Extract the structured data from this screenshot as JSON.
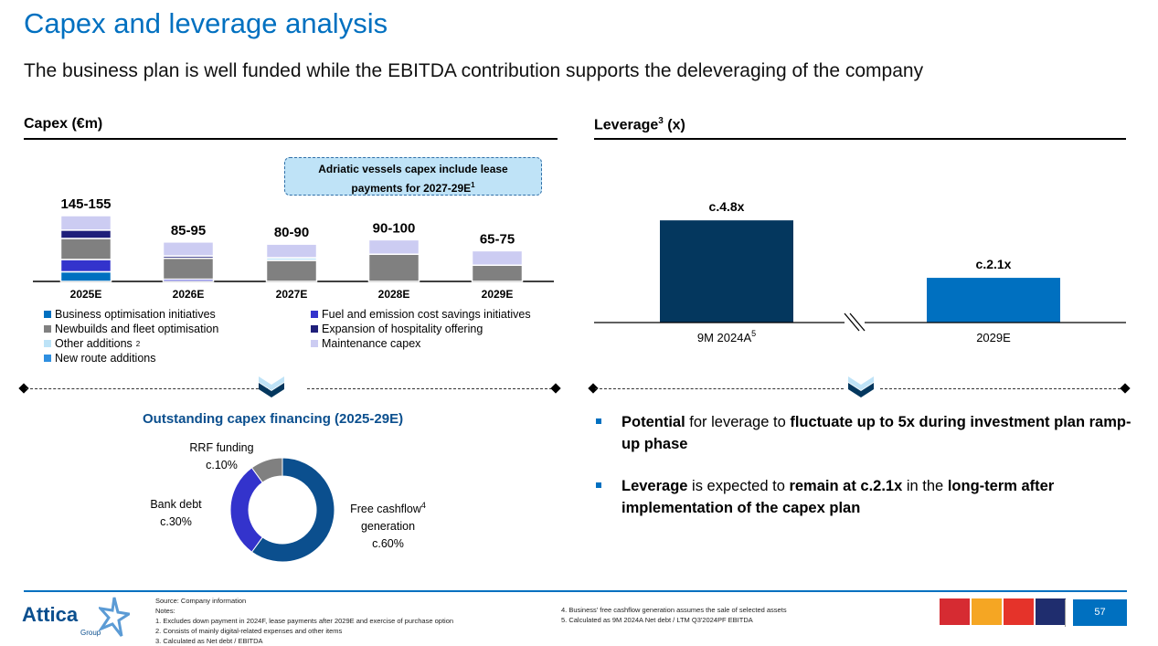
{
  "header": {
    "title": "Capex and leverage analysis",
    "subtitle": "The business plan is well funded while the EBITDA contribution supports the deleveraging of the company"
  },
  "capex": {
    "heading": "Capex (€m)",
    "callout": {
      "line1": "Adriatic vessels capex include lease",
      "line2": "payments for 2027-29E",
      "sup": "1"
    },
    "legend": [
      {
        "key": "bo",
        "label": "Business optimisation initiatives",
        "color": "#0070c0"
      },
      {
        "key": "fuel",
        "label": "Fuel and emission cost savings initiatives",
        "color": "#3333cc"
      },
      {
        "key": "nb",
        "label": "Newbuilds and fleet optimisation",
        "color": "#808080"
      },
      {
        "key": "hosp",
        "label": "Expansion of hospitality offering",
        "color": "#1f1f7a"
      },
      {
        "key": "other",
        "label": "Other additions",
        "sup": "2",
        "color": "#bde3f7"
      },
      {
        "key": "maint",
        "label": "Maintenance capex",
        "color": "#ccccf2"
      },
      {
        "key": "route",
        "label": "New route additions",
        "color": "#2e8fe0"
      }
    ]
  },
  "chart_data": [
    {
      "type": "bar",
      "stacked": true,
      "title": "Capex (€m)",
      "categories": [
        "2025E",
        "2026E",
        "2027E",
        "2028E",
        "2029E"
      ],
      "total_labels": [
        "145-155",
        "85-95",
        "80-90",
        "90-100",
        "65-75"
      ],
      "series": [
        {
          "name": "Business optimisation initiatives",
          "key": "bo",
          "values": [
            22,
            0,
            0,
            0,
            0
          ]
        },
        {
          "name": "Fuel and emission cost savings initiatives",
          "key": "fuel",
          "values": [
            28,
            5,
            0,
            0,
            0
          ]
        },
        {
          "name": "Newbuilds and fleet optimisation",
          "key": "nb",
          "values": [
            48,
            48,
            48,
            62,
            37
          ]
        },
        {
          "name": "Expansion of hospitality offering",
          "key": "hosp",
          "values": [
            19,
            5,
            0,
            0,
            0
          ]
        },
        {
          "name": "Other additions",
          "key": "other",
          "values": [
            0,
            0,
            6,
            0,
            0
          ]
        },
        {
          "name": "Maintenance capex",
          "key": "maint",
          "values": [
            33,
            32,
            31,
            33,
            33
          ]
        }
      ]
    },
    {
      "type": "bar",
      "title": "Leverage (x)",
      "categories": [
        "9M 2024A",
        "2029E"
      ],
      "category_sups": [
        "5",
        ""
      ],
      "values": [
        4.8,
        2.1
      ],
      "labels": [
        "c.4.8x",
        "c.2.1x"
      ],
      "colors": [
        "#04375e",
        "#0070c0"
      ]
    },
    {
      "type": "pie",
      "donut": true,
      "title": "Outstanding capex financing (2025-29E)",
      "slices": [
        {
          "name": "Free cashflow generation",
          "value": 60,
          "label": "c.60%",
          "color": "#0b4f8e"
        },
        {
          "name": "Bank debt",
          "value": 30,
          "label": "c.30%",
          "color": "#3333cc"
        },
        {
          "name": "RRF funding",
          "value": 10,
          "label": "c.10%",
          "color": "#808080"
        }
      ]
    }
  ],
  "leverage": {
    "heading": "Leverage",
    "sup": "3",
    "unit": " (x)"
  },
  "financing": {
    "title": "Outstanding capex financing (2025-29E)",
    "rrf": "RRF funding",
    "rrf_pct": "c.10%",
    "bank": "Bank debt",
    "bank_pct": "c.30%",
    "fcf1": "Free cashflow",
    "fcf_sup": "4",
    "fcf2": "generation",
    "fcf_pct": "c.60%"
  },
  "bullets": [
    [
      {
        "t": "Potential",
        "b": true
      },
      {
        "t": " for leverage to ",
        "b": false
      },
      {
        "t": "fluctuate up to 5x during investment plan ramp-up phase",
        "b": true
      }
    ],
    [
      {
        "t": "Leverage",
        "b": true
      },
      {
        "t": " is expected to ",
        "b": false
      },
      {
        "t": "remain at c.2.1x",
        "b": true
      },
      {
        "t": " in the ",
        "b": false
      },
      {
        "t": "long-term after implementation of the capex plan",
        "b": true
      }
    ]
  ],
  "footer": {
    "logo": "Attica",
    "logo_sub": "Group",
    "notes_left": [
      "Source: Company information",
      "Notes:",
      "1. Excludes down payment in 2024F, lease payments after 2029E and exercise of purchase option",
      "2. Consists of mainly digital-related expenses and other items",
      "3. Calculated as Net debt / EBITDA"
    ],
    "notes_right": [
      "4. Business' free cashflow generation assumes the sale of selected assets",
      "5. Calculated as 9M 2024A Net debt / LTM Q3'2024PF EBITDA"
    ],
    "brands": [
      {
        "color": "#d62b32"
      },
      {
        "color": "#f5a623"
      },
      {
        "color": "#e5332a"
      },
      {
        "color": "#1f2d6e"
      }
    ],
    "page": "57"
  }
}
